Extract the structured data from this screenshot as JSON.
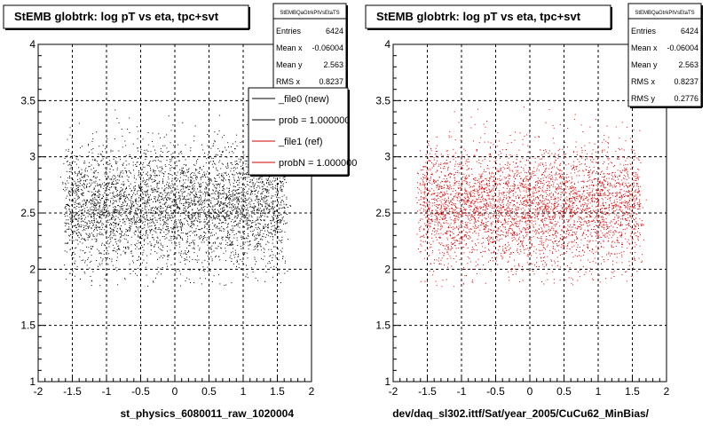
{
  "chart_data": [
    {
      "type": "scatter",
      "title": "StEMB globtrk: log pT vs eta, tpc+svt",
      "xlabel": "st_physics_6080011_raw_1020004",
      "ylabel": "",
      "xlim": [
        -2,
        2
      ],
      "ylim": [
        1,
        4
      ],
      "x_ticks": [
        "-2",
        "-1.5",
        "-1",
        "-0.5",
        "0",
        "0.5",
        "1",
        "1.5",
        "2"
      ],
      "y_ticks": [
        "1",
        "1.5",
        "2",
        "2.5",
        "3",
        "3.5",
        "4"
      ],
      "grid": true,
      "marker_color": "#000000",
      "stats": {
        "name": "StEMBQaGtrkPtVsEtaTS",
        "rows": [
          {
            "label": "Entries",
            "value": "6424"
          },
          {
            "label": "Mean x",
            "value": "-0.06004"
          },
          {
            "label": "Mean y",
            "value": "2.563"
          },
          {
            "label": "RMS x",
            "value": "0.8237"
          }
        ]
      },
      "legend": {
        "placement": "top-right",
        "entries": [
          {
            "label": "_file0 (new)",
            "color": "#000000"
          },
          {
            "label": "prob = 1.000000",
            "color": "#000000"
          },
          {
            "label": "_file1 (ref)",
            "color": "#cc0000"
          },
          {
            "label": "probN = 1.000000",
            "color": "#cc0000"
          }
        ]
      },
      "distribution": {
        "x_range": [
          -1.6,
          1.6
        ],
        "y_mean": 2.563,
        "y_rms": 0.2776,
        "points": 6424
      }
    },
    {
      "type": "scatter",
      "title": "StEMB globtrk: log pT vs eta, tpc+svt",
      "xlabel": "dev/daq_sl302.ittf/Sat/year_2005/CuCu62_MinBias/",
      "ylabel": "",
      "xlim": [
        -2,
        2
      ],
      "ylim": [
        1,
        4
      ],
      "x_ticks": [
        "-2",
        "-1.5",
        "-1",
        "-0.5",
        "0",
        "0.5",
        "1",
        "1.5",
        "2"
      ],
      "y_ticks": [
        "1",
        "1.5",
        "2",
        "2.5",
        "3",
        "3.5",
        "4"
      ],
      "grid": true,
      "marker_color": "#e00000",
      "stats": {
        "name": "StEMBQaGtrkPtVsEtaTS",
        "rows": [
          {
            "label": "Entries",
            "value": "6424"
          },
          {
            "label": "Mean x",
            "value": "-0.06004"
          },
          {
            "label": "Mean y",
            "value": "2.563"
          },
          {
            "label": "RMS x",
            "value": "0.8237"
          },
          {
            "label": "RMS y",
            "value": "0.2776"
          }
        ]
      },
      "distribution": {
        "x_range": [
          -1.6,
          1.6
        ],
        "y_mean": 2.563,
        "y_rms": 0.2776,
        "points": 6424
      }
    }
  ]
}
